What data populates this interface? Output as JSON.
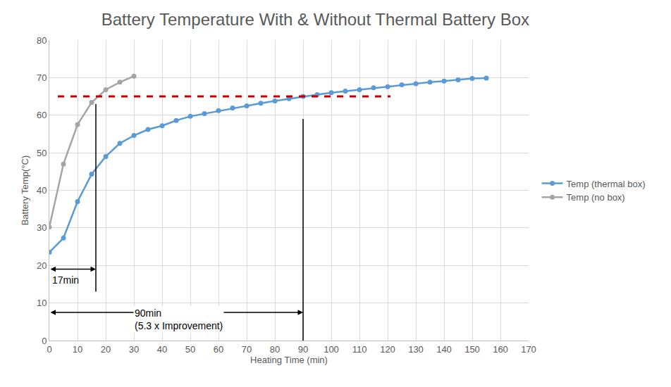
{
  "chart_data": {
    "type": "line",
    "title": "Battery Temperature With & Without Thermal Battery Box",
    "x_label": "Heating Time (min)",
    "y_label": "Battery Temp(°C)",
    "xlim": [
      0,
      170
    ],
    "xticks": [
      0,
      10,
      20,
      30,
      40,
      50,
      60,
      70,
      80,
      90,
      100,
      110,
      120,
      130,
      140,
      150,
      160,
      170
    ],
    "ylim": [
      0,
      80
    ],
    "yticks": [
      0,
      10,
      20,
      30,
      40,
      50,
      60,
      70,
      80
    ],
    "grid": true,
    "legend": "right",
    "marker": "circle",
    "series": [
      {
        "name": "Temp (thermal box)",
        "color": "#5b9bd5",
        "x": [
          0,
          5,
          10,
          15,
          20,
          25,
          30,
          35,
          40,
          45,
          50,
          55,
          60,
          65,
          70,
          75,
          80,
          85,
          90,
          95,
          100,
          105,
          110,
          115,
          120,
          125,
          130,
          135,
          140,
          145,
          150,
          155
        ],
        "values": [
          23.5,
          27.3,
          37,
          44.3,
          49,
          52.5,
          54.6,
          56.2,
          57.2,
          58.6,
          59.7,
          60.4,
          61.2,
          61.9,
          62.5,
          63.2,
          63.8,
          64.4,
          65,
          65.5,
          66,
          66.4,
          66.8,
          67.3,
          67.6,
          68.1,
          68.4,
          68.8,
          69.1,
          69.4,
          69.8,
          69.9
        ]
      },
      {
        "name": "Temp (no box)",
        "color": "#a5a5a5",
        "x": [
          0,
          5,
          10,
          15,
          20,
          25,
          30
        ],
        "values": [
          30.2,
          47,
          57.5,
          63.4,
          66.8,
          68.8,
          70.4
        ]
      }
    ],
    "reference_lines": [
      {
        "y": 65,
        "x": [
          3,
          121
        ],
        "color": "#c00000",
        "line_style": "dash"
      }
    ],
    "vertical_lines": [
      {
        "x": 16.5,
        "y": [
          13,
          63
        ],
        "color": "#000000"
      },
      {
        "x": 90,
        "y": [
          0,
          59
        ],
        "color": "#000000"
      }
    ],
    "spans": [
      {
        "x": [
          0,
          16.5
        ],
        "y": 19,
        "label": [
          "17min"
        ]
      },
      {
        "x": [
          0,
          90
        ],
        "y": 7.5,
        "label": [
          "90min",
          "(5.3 x Improvement)"
        ]
      }
    ]
  }
}
